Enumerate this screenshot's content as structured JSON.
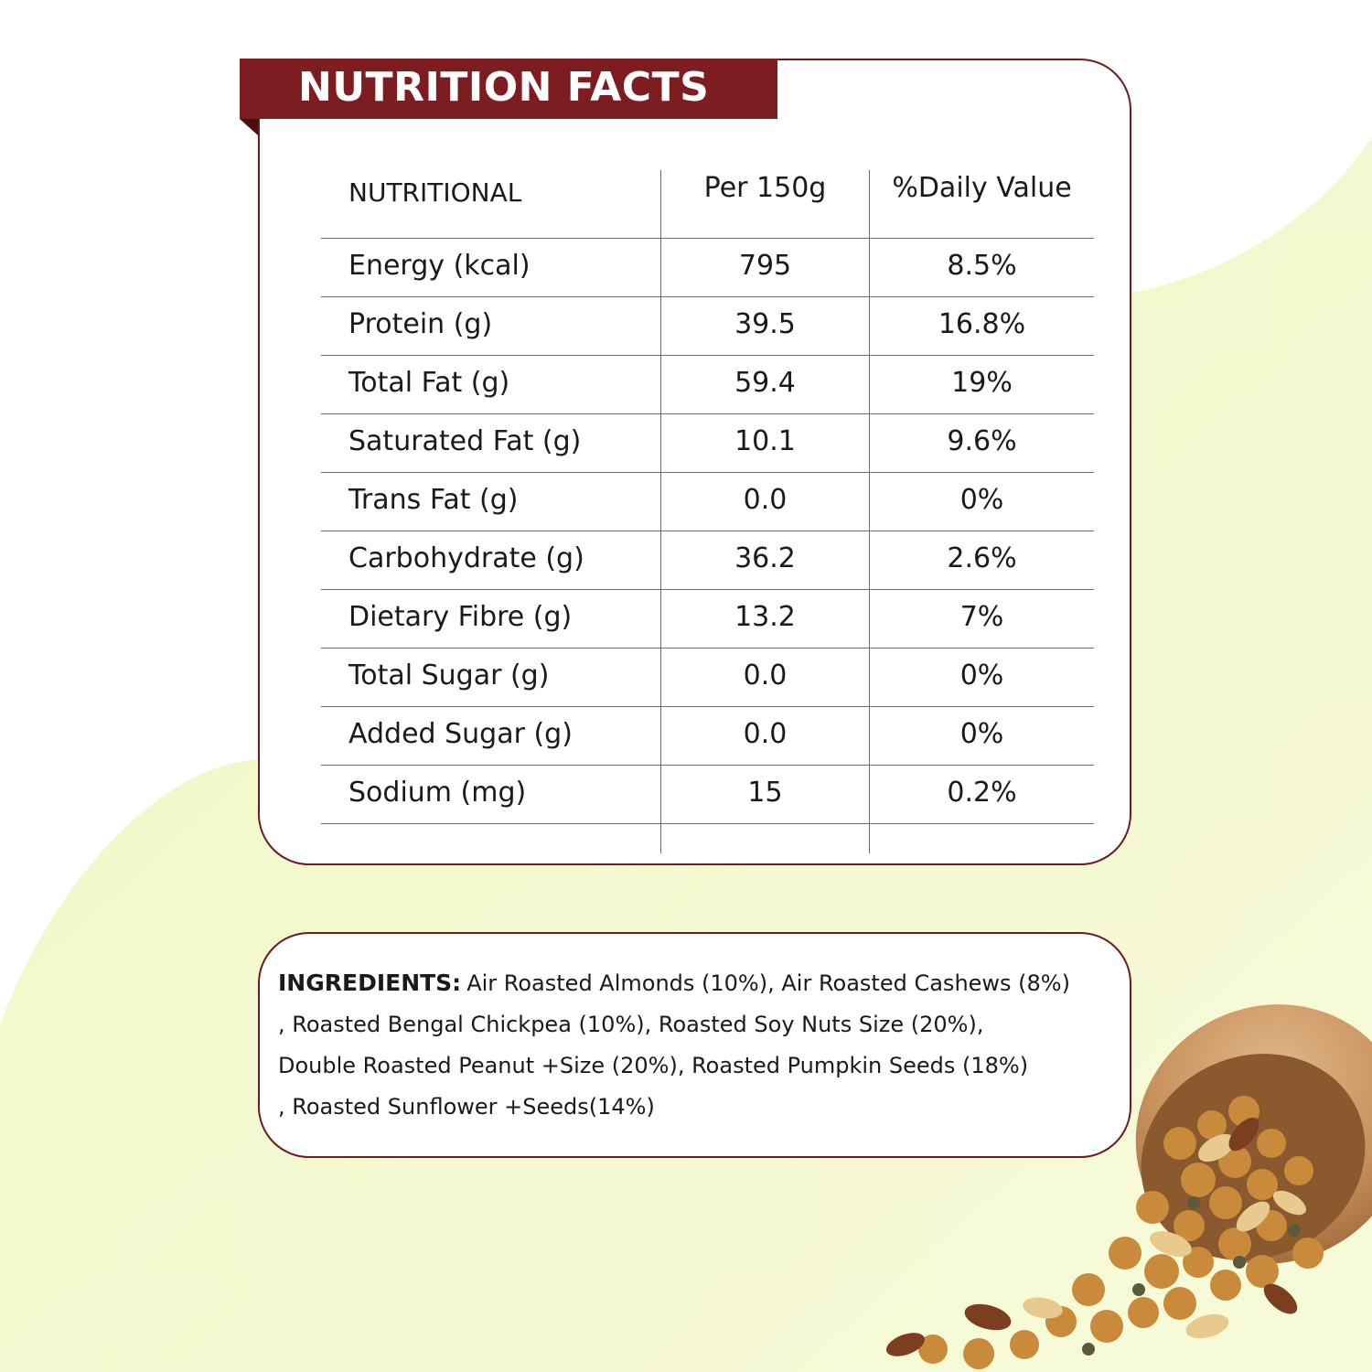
{
  "colors": {
    "brand": "#7d1d22",
    "border": "#6e1a1e",
    "background_tint": "#f4f9c9"
  },
  "nutrition": {
    "title": "NUTRITION FACTS",
    "headers": {
      "nutritional": "NUTRITIONAL",
      "per": "Per 150g",
      "daily": "%Daily Value"
    },
    "rows": [
      {
        "label": "Energy (kcal)",
        "value": "795",
        "daily": "8.5%"
      },
      {
        "label": "Protein (g)",
        "value": "39.5",
        "daily": "16.8%"
      },
      {
        "label": "Total Fat (g)",
        "value": "59.4",
        "daily": "19%"
      },
      {
        "label": "Saturated Fat (g)",
        "value": "10.1",
        "daily": "9.6%"
      },
      {
        "label": "Trans Fat (g)",
        "value": "0.0",
        "daily": "0%"
      },
      {
        "label": "Carbohydrate (g)",
        "value": "36.2",
        "daily": "2.6%"
      },
      {
        "label": "Dietary Fibre (g)",
        "value": "13.2",
        "daily": "7%"
      },
      {
        "label": "Total Sugar (g)",
        "value": "0.0",
        "daily": "0%"
      },
      {
        "label": "Added Sugar (g)",
        "value": "0.0",
        "daily": "0%"
      },
      {
        "label": "Sodium (mg)",
        "value": "15",
        "daily": "0.2%"
      }
    ]
  },
  "ingredients": {
    "heading": "INGREDIENTS:",
    "lines": [
      "Air Roasted Almonds (10%), Air Roasted Cashews (8%)",
      ", Roasted Bengal Chickpea (10%), Roasted Soy Nuts Size (20%),",
      "Double Roasted Peanut +Size (20%), Roasted Pumpkin Seeds (18%)",
      ", Roasted Sunflower +Seeds(14%)"
    ]
  },
  "icons": {
    "bowl": "wooden-bowl-of-roasted-nuts-icon"
  }
}
